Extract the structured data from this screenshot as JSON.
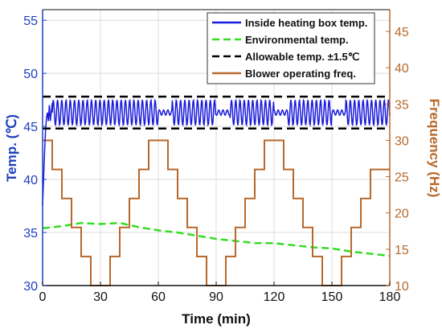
{
  "chart_data": {
    "type": "line",
    "xlabel": "Time (min)",
    "ylabel_left": "Temp. (℃)",
    "ylabel_right": "Frequency (Hz)",
    "x_ticks": [
      "0",
      "30",
      "60",
      "90",
      "120",
      "150",
      "180"
    ],
    "y_left_ticks": [
      "30",
      "35",
      "40",
      "45",
      "50",
      "55"
    ],
    "y_right_ticks": [
      "10",
      "15",
      "20",
      "25",
      "30",
      "35",
      "40",
      "45"
    ],
    "xlim": [
      0,
      180
    ],
    "ylim_left": [
      30,
      56
    ],
    "ylim_right": [
      10,
      48
    ],
    "grid": true,
    "legend_position": "top-right",
    "colors": {
      "inside": "#1a1adc",
      "environment": "#33dd22",
      "allowable": "#000000",
      "blower": "#b8682a"
    },
    "series": [
      {
        "name": "Inside heating box temp.",
        "axis": "left",
        "style": "solid",
        "x": [
          0,
          0.5,
          1,
          1.5,
          2,
          2.5,
          3,
          3.5,
          4,
          5
        ],
        "y": [
          37.5,
          40,
          42.5,
          44.5,
          45.8,
          46.3,
          45.5,
          47,
          45.5,
          47.2
        ],
        "oscillation": {
          "x_start": 5,
          "x_end": 180,
          "center": 46.3,
          "amplitude": 1.2,
          "period_min": 2.2,
          "flat_segments": [
            [
              60,
              67
            ],
            [
              90,
              97
            ],
            [
              120,
              127
            ],
            [
              150,
              157
            ]
          ],
          "end_value": 46.3
        }
      },
      {
        "name": "Environmental temp.",
        "axis": "left",
        "style": "dashed",
        "x": [
          0,
          10,
          20,
          30,
          40,
          50,
          60,
          70,
          80,
          90,
          100,
          110,
          120,
          130,
          140,
          150,
          160,
          170,
          180
        ],
        "y": [
          35.4,
          35.6,
          35.9,
          35.8,
          35.9,
          35.5,
          35.2,
          35.0,
          34.7,
          34.4,
          34.2,
          34.0,
          34.0,
          33.8,
          33.6,
          33.5,
          33.2,
          33.0,
          32.8
        ]
      },
      {
        "name": "Allowable temp. ±1.5℃",
        "axis": "left",
        "style": "dashed",
        "bands": [
          44.8,
          47.8
        ]
      },
      {
        "name": "Blower operating freq.",
        "axis": "right",
        "style": "step",
        "x": [
          0,
          5,
          5,
          10,
          10,
          15,
          15,
          20,
          20,
          25,
          25,
          30,
          30,
          35,
          35,
          40,
          40,
          45,
          45,
          50,
          50,
          55,
          55,
          60,
          60,
          65,
          65,
          70,
          70,
          75,
          75,
          80,
          80,
          85,
          85,
          90,
          90,
          95,
          95,
          100,
          100,
          105,
          105,
          110,
          110,
          115,
          115,
          120,
          120,
          125,
          125,
          130,
          130,
          135,
          135,
          140,
          140,
          145,
          145,
          150,
          150,
          155,
          155,
          160,
          160,
          165,
          165,
          170,
          170,
          175,
          175,
          180
        ],
        "y": [
          30,
          30,
          26,
          26,
          22,
          22,
          18,
          18,
          14,
          14,
          10,
          10,
          10,
          10,
          14,
          14,
          18,
          18,
          22,
          22,
          26,
          26,
          30,
          30,
          30,
          30,
          26,
          26,
          22,
          22,
          18,
          18,
          14,
          14,
          10,
          10,
          10,
          10,
          14,
          14,
          18,
          18,
          22,
          22,
          26,
          26,
          30,
          30,
          30,
          30,
          26,
          26,
          22,
          22,
          18,
          18,
          14,
          14,
          10,
          10,
          10,
          10,
          14,
          14,
          18,
          18,
          22,
          22,
          26,
          26,
          26,
          26
        ]
      }
    ]
  }
}
